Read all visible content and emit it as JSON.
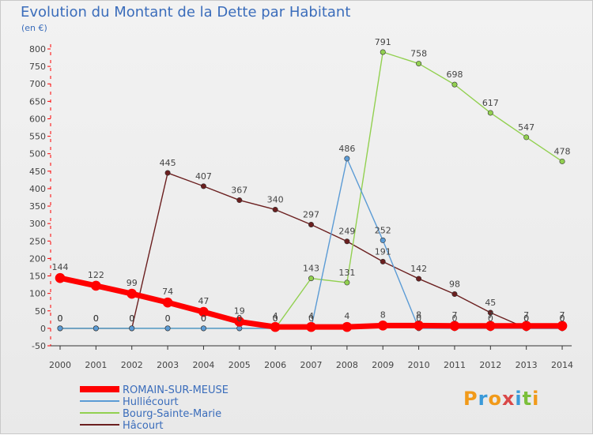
{
  "chart_data": {
    "type": "line",
    "title": "Evolution du Montant de la Dette par Habitant",
    "subtitle": "(en €)",
    "categories": [
      "2000",
      "2001",
      "2002",
      "2003",
      "2004",
      "2005",
      "2006",
      "2007",
      "2008",
      "2009",
      "2010",
      "2011",
      "2012",
      "2013",
      "2014"
    ],
    "y_ticks": [
      "-50",
      "0",
      "50",
      "100",
      "150",
      "200",
      "250",
      "300",
      "350",
      "400",
      "450",
      "500",
      "550",
      "600",
      "650",
      "700",
      "750",
      "800"
    ],
    "ylim": [
      -50,
      800
    ],
    "grid": false,
    "legend_position": "bottom-left",
    "series": [
      {
        "name": "ROMAIN-SUR-MEUSE",
        "color": "#ff0000",
        "values": [
          144,
          122,
          99,
          74,
          47,
          19,
          4,
          4,
          4,
          8,
          8,
          7,
          7,
          7,
          7
        ],
        "labels": [
          "144",
          "122",
          "99",
          "74",
          "47",
          "19",
          "4",
          "4",
          "4",
          "8",
          "8",
          "7",
          "7",
          "7",
          "7"
        ]
      },
      {
        "name": "Hulliécourt",
        "color": "#5b9bd5",
        "values": [
          0,
          0,
          0,
          0,
          0,
          0,
          0,
          0,
          486,
          252,
          0,
          0,
          0,
          0,
          0
        ],
        "labels": [
          "0",
          "0",
          "0",
          "0",
          "0",
          "0",
          "0",
          "0",
          "486",
          "252",
          "0",
          "0",
          "0",
          "0",
          "0"
        ]
      },
      {
        "name": "Bourg-Sainte-Marie",
        "color": "#92d050",
        "values": [
          0,
          0,
          0,
          0,
          0,
          0,
          0,
          143,
          131,
          791,
          758,
          698,
          617,
          547,
          478
        ],
        "labels": [
          "0",
          "0",
          "0",
          "0",
          "0",
          "0",
          "0",
          "143",
          "131",
          "791",
          "758",
          "698",
          "617",
          "547",
          "478"
        ]
      },
      {
        "name": "Hâcourt",
        "color": "#6b1f1f",
        "values": [
          0,
          0,
          0,
          445,
          407,
          367,
          340,
          297,
          249,
          191,
          142,
          98,
          45,
          0,
          0
        ],
        "labels": [
          "0",
          "0",
          "0",
          "445",
          "407",
          "367",
          "340",
          "297",
          "249",
          "191",
          "142",
          "98",
          "45",
          "0",
          "0"
        ]
      }
    ]
  },
  "logo_letters": [
    "P",
    "r",
    "o",
    "x",
    "i",
    "t",
    "i"
  ]
}
